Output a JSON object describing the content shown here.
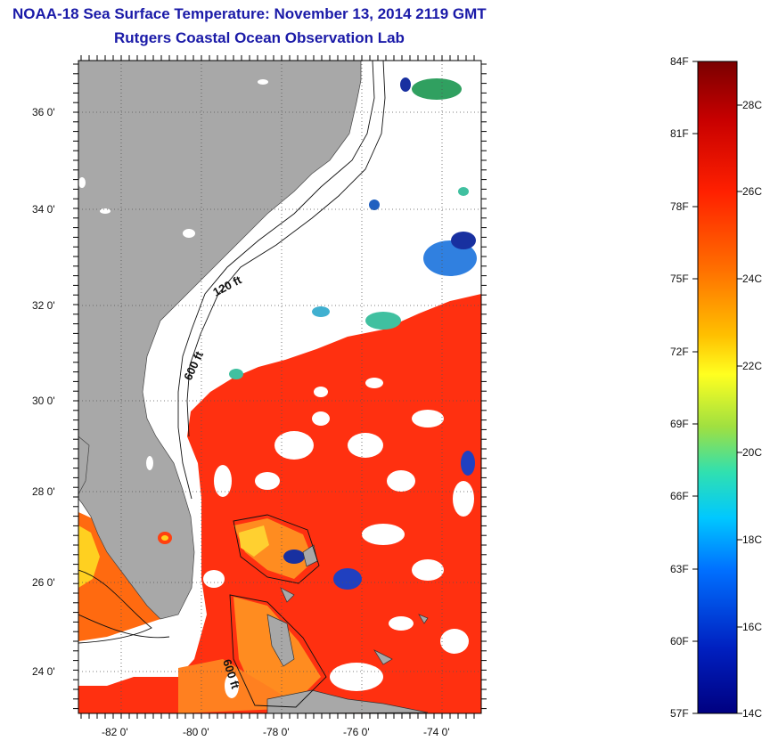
{
  "title_line1": "NOAA-18 Sea Surface Temperature:  November 13, 2014 2119 GMT",
  "title_line2": "Rutgers Coastal Ocean Observation Lab",
  "map": {
    "lat_labels": [
      "36 0'",
      "34 0'",
      "32 0'",
      "30 0'",
      "28 0'",
      "26 0'",
      "24 0'"
    ],
    "lon_labels": [
      "-82 0'",
      "-80 0'",
      "-78 0'",
      "-76 0'",
      "-74 0'"
    ],
    "contour_labels": [
      "120 ft",
      "600 ft",
      "600 ft"
    ]
  },
  "colorbar": {
    "f_labels": [
      "84F",
      "81F",
      "78F",
      "75F",
      "72F",
      "69F",
      "66F",
      "63F",
      "60F",
      "57F"
    ],
    "c_labels": [
      "28C",
      "26C",
      "24C",
      "22C",
      "20C",
      "18C",
      "16C",
      "14C"
    ],
    "colors": [
      "#7a0000",
      "#c80000",
      "#ff2000",
      "#ff7000",
      "#ffc000",
      "#ffff20",
      "#a0e040",
      "#30e0b0",
      "#00c8ff",
      "#0070ff",
      "#0020c0",
      "#000080"
    ]
  },
  "colors": {
    "title": "#1a1aa8",
    "land": "#a8a8a8",
    "cloud": "#ffffff",
    "warm_water": "#ff3010"
  }
}
